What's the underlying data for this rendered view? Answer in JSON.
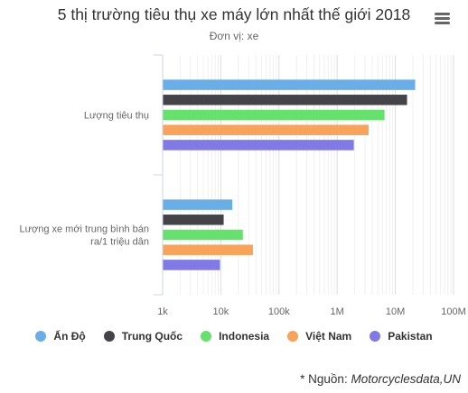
{
  "chart_data": {
    "type": "bar",
    "orientation": "horizontal",
    "title": "5 thị trường tiêu thụ xe máy lớn nhất thế giới 2018",
    "subtitle": "Đơn vị: xe",
    "categories": [
      "Lượng tiêu thụ",
      "Lượng xe mới trung bình bán ra/1 triệu dân"
    ],
    "x_scale": "log",
    "xlim": [
      1000,
      100000000
    ],
    "x_ticks": [
      "1k",
      "10k",
      "100k",
      "1M",
      "10M",
      "100M"
    ],
    "grid": true,
    "legend_position": "bottom",
    "series": [
      {
        "name": "Ấn Độ",
        "color": "#6aaee8",
        "values": [
          21500000,
          15500
        ]
      },
      {
        "name": "Trung Quốc",
        "color": "#434348",
        "values": [
          15600000,
          11000
        ]
      },
      {
        "name": "Indonesia",
        "color": "#66e16e",
        "values": [
          6400000,
          23500
        ]
      },
      {
        "name": "Việt Nam",
        "color": "#f9a259",
        "values": [
          3400000,
          35000
        ]
      },
      {
        "name": "Pakistan",
        "color": "#8079e6",
        "values": [
          1900000,
          9500
        ]
      }
    ]
  },
  "menu": {
    "icon": "hamburger-menu-icon"
  },
  "source": {
    "prefix": "* Nguồn: ",
    "text": "Motorcyclesdata,UN"
  }
}
